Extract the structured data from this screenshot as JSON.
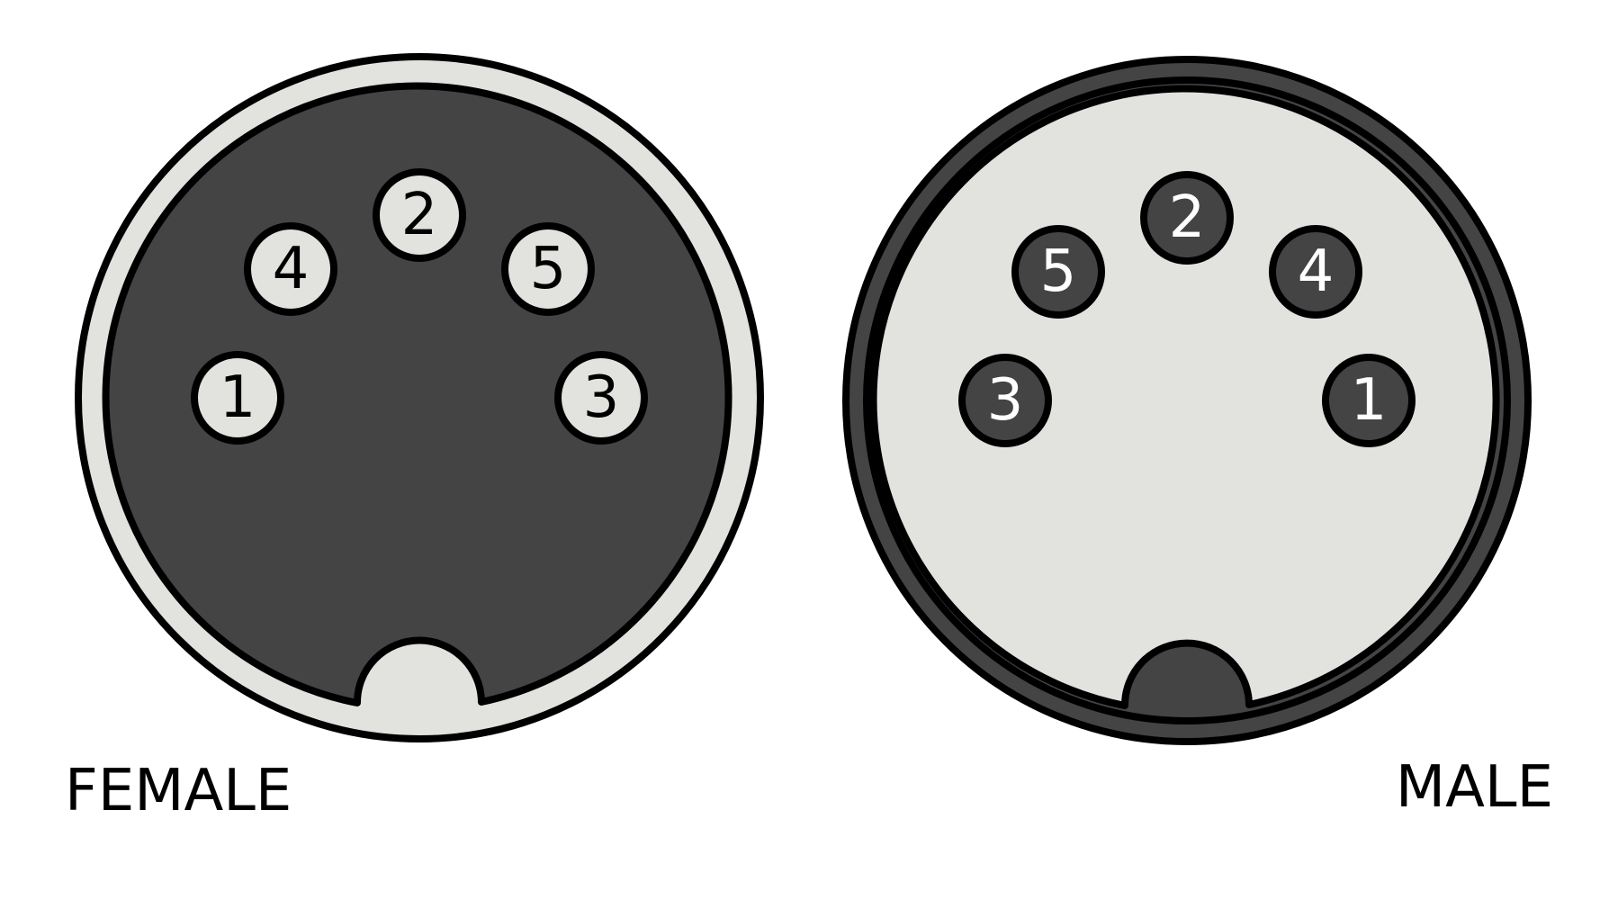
{
  "colors": {
    "dark": "#444444",
    "light": "#e2e2de",
    "outline": "#000000",
    "background": "#ffffff"
  },
  "connectors": {
    "female": {
      "label": "FEMALE",
      "pins": {
        "p1": "1",
        "p2": "2",
        "p3": "3",
        "p4": "4",
        "p5": "5"
      }
    },
    "male": {
      "label": "MALE",
      "pins": {
        "p1": "1",
        "p2": "2",
        "p3": "3",
        "p4": "4",
        "p5": "5"
      }
    }
  }
}
